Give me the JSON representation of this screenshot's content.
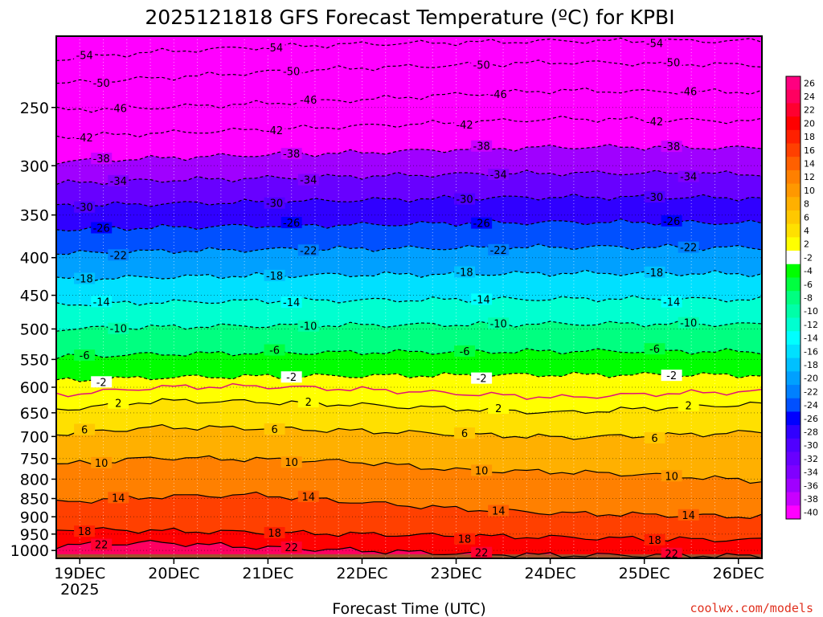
{
  "chart_data": {
    "type": "heatmap",
    "title": "2025121818 GFS Forecast Temperature (ºC) for KPBI",
    "xlabel": "Forecast Time (UTC)",
    "ylabel": "",
    "credit": "coolwx.com/models",
    "x_ticks": [
      "19DEC",
      "20DEC",
      "21DEC",
      "22DEC",
      "23DEC",
      "24DEC",
      "25DEC",
      "26DEC"
    ],
    "x_tick_sub": "2025",
    "x_range_days": [
      18.75,
      26.25
    ],
    "y_ticks": [
      250,
      300,
      350,
      400,
      450,
      500,
      550,
      600,
      650,
      700,
      750,
      800,
      850,
      900,
      950,
      1000
    ],
    "y_range_hpa": [
      200,
      1025
    ],
    "y_scale": "log",
    "grid": true,
    "surface_color": "#a0522d",
    "colorbar": {
      "position": "right",
      "labels": [
        26,
        24,
        22,
        20,
        18,
        16,
        14,
        12,
        10,
        8,
        6,
        4,
        2,
        -2,
        -4,
        -6,
        -8,
        -10,
        -12,
        -14,
        -16,
        -18,
        -20,
        -22,
        -24,
        -26,
        -28,
        -30,
        -32,
        -34,
        -36,
        -38,
        -40
      ],
      "colors": [
        "#ff0080",
        "#ff0060",
        "#ff0030",
        "#ff0000",
        "#ff2000",
        "#ff4000",
        "#ff6000",
        "#ff8000",
        "#ff9800",
        "#ffb000",
        "#ffc800",
        "#ffe000",
        "#ffff00",
        "#ffffff",
        "#00ff00",
        "#00ff40",
        "#00ff80",
        "#00ffa8",
        "#00ffd0",
        "#00ffff",
        "#00e0ff",
        "#00c0ff",
        "#00a0ff",
        "#0080ff",
        "#0050ff",
        "#0000ff",
        "#3000ff",
        "#5000ff",
        "#6800ff",
        "#8000ff",
        "#a000ff",
        "#c800ff",
        "#ff00ff"
      ]
    },
    "isotherms": [
      {
        "temp": -54,
        "label": "-54",
        "p": [
          215,
          210,
          207,
          205,
          204,
          203,
          203,
          203
        ]
      },
      {
        "temp": -50,
        "label": "-50",
        "p": [
          232,
          228,
          224,
          221,
          219,
          217,
          218,
          219
        ]
      },
      {
        "temp": -46,
        "label": "-46",
        "p": [
          252,
          250,
          247,
          244,
          240,
          237,
          238,
          238
        ]
      },
      {
        "temp": -42,
        "label": "-42",
        "p": [
          274,
          271,
          268,
          265,
          262,
          259,
          260,
          261
        ]
      },
      {
        "temp": -38,
        "label": "-38",
        "p": [
          296,
          293,
          290,
          288,
          285,
          283,
          283,
          284
        ]
      },
      {
        "temp": -34,
        "label": "-34",
        "p": [
          317,
          314,
          312,
          310,
          308,
          307,
          307,
          308
        ]
      },
      {
        "temp": -30,
        "label": "-30",
        "p": [
          340,
          338,
          336,
          334,
          332,
          331,
          331,
          332
        ]
      },
      {
        "temp": -26,
        "label": "-26",
        "p": [
          366,
          364,
          362,
          361,
          359,
          358,
          358,
          359
        ]
      },
      {
        "temp": -22,
        "label": "-22",
        "p": [
          395,
          392,
          390,
          389,
          388,
          387,
          387,
          388
        ]
      },
      {
        "temp": -18,
        "label": "-18",
        "p": [
          428,
          425,
          423,
          422,
          421,
          420,
          420,
          421
        ]
      },
      {
        "temp": -14,
        "label": "-14",
        "p": [
          463,
          460,
          458,
          457,
          456,
          455,
          455,
          456
        ]
      },
      {
        "temp": -10,
        "label": "-10",
        "p": [
          500,
          497,
          495,
          494,
          493,
          492,
          492,
          493
        ]
      },
      {
        "temp": -6,
        "label": "-6",
        "p": [
          545,
          541,
          539,
          538,
          537,
          536,
          536,
          537
        ]
      },
      {
        "temp": -2,
        "label": "-2",
        "p": [
          588,
          582,
          580,
          579,
          578,
          577,
          577,
          578
        ]
      },
      {
        "temp": 2,
        "label": "2",
        "p": [
          644,
          626,
          628,
          634,
          642,
          650,
          640,
          632
        ]
      },
      {
        "temp": 6,
        "label": "6",
        "p": [
          695,
          680,
          682,
          688,
          695,
          702,
          698,
          690
        ]
      },
      {
        "temp": 10,
        "label": "10",
        "p": [
          765,
          748,
          752,
          758,
          778,
          782,
          790,
          805
        ]
      },
      {
        "temp": 14,
        "label": "14",
        "p": [
          860,
          845,
          840,
          860,
          878,
          890,
          895,
          900
        ]
      },
      {
        "temp": 18,
        "label": "18",
        "p": [
          935,
          940,
          945,
          950,
          955,
          960,
          965,
          968
        ]
      },
      {
        "temp": 22,
        "label": "22",
        "p": [
          985,
          975,
          990,
          1000,
          1010,
          1015,
          1015,
          1018
        ]
      }
    ],
    "freezing_level_hpa": [
      615,
      600,
      598,
      604,
      612,
      620,
      612,
      608
    ]
  }
}
